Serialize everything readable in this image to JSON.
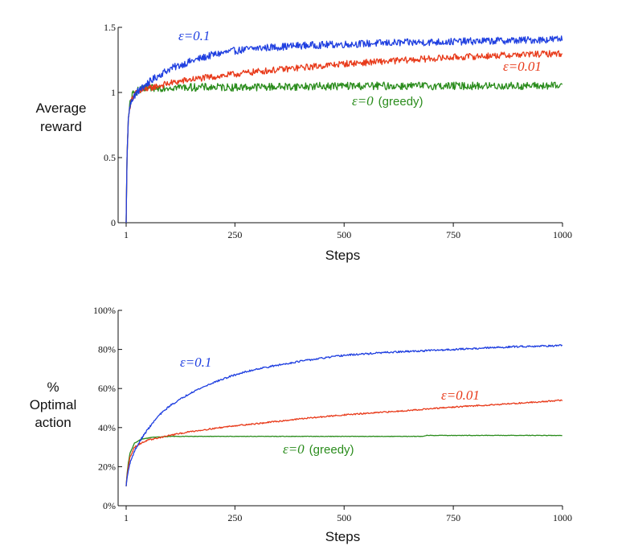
{
  "chart_data": [
    {
      "type": "line",
      "xlabel": "Steps",
      "ylabel": [
        "Average",
        "reward"
      ],
      "xlim": [
        1,
        1000
      ],
      "ylim": [
        0,
        1.5
      ],
      "xticks": [
        "1",
        "250",
        "500",
        "750",
        "1000"
      ],
      "yticks": [
        "0",
        "0.5",
        "1",
        "1.5"
      ],
      "grid": false,
      "series": [
        {
          "name": "ε=0.1",
          "color": "#1f3fe0",
          "points": [
            [
              1,
              0.0
            ],
            [
              3,
              0.5
            ],
            [
              6,
              0.8
            ],
            [
              10,
              0.9
            ],
            [
              15,
              0.95
            ],
            [
              25,
              1.0
            ],
            [
              50,
              1.07
            ],
            [
              75,
              1.13
            ],
            [
              100,
              1.18
            ],
            [
              150,
              1.24
            ],
            [
              200,
              1.29
            ],
            [
              250,
              1.32
            ],
            [
              300,
              1.34
            ],
            [
              400,
              1.36
            ],
            [
              500,
              1.37
            ],
            [
              600,
              1.38
            ],
            [
              750,
              1.39
            ],
            [
              900,
              1.4
            ],
            [
              1000,
              1.41
            ]
          ]
        },
        {
          "name": "ε=0.01",
          "color": "#e83a1a",
          "points": [
            [
              1,
              0.0
            ],
            [
              3,
              0.5
            ],
            [
              6,
              0.8
            ],
            [
              10,
              0.9
            ],
            [
              15,
              0.96
            ],
            [
              25,
              1.0
            ],
            [
              50,
              1.03
            ],
            [
              100,
              1.07
            ],
            [
              150,
              1.1
            ],
            [
              200,
              1.12
            ],
            [
              250,
              1.14
            ],
            [
              300,
              1.16
            ],
            [
              400,
              1.19
            ],
            [
              500,
              1.22
            ],
            [
              600,
              1.24
            ],
            [
              750,
              1.27
            ],
            [
              900,
              1.29
            ],
            [
              1000,
              1.3
            ]
          ]
        },
        {
          "name": "ε=0 (greedy)",
          "color": "#2a8c1c",
          "points": [
            [
              1,
              0.0
            ],
            [
              3,
              0.5
            ],
            [
              6,
              0.8
            ],
            [
              10,
              0.92
            ],
            [
              15,
              0.98
            ],
            [
              25,
              1.01
            ],
            [
              50,
              1.03
            ],
            [
              100,
              1.04
            ],
            [
              250,
              1.04
            ],
            [
              500,
              1.05
            ],
            [
              750,
              1.05
            ],
            [
              1000,
              1.05
            ]
          ]
        }
      ],
      "annotations": [
        {
          "text": "ε=0.1",
          "series": 0
        },
        {
          "text": "ε=0.01",
          "series": 1
        },
        {
          "text": "ε=0",
          "suffix": "(greedy)",
          "series": 2
        }
      ]
    },
    {
      "type": "line",
      "xlabel": "Steps",
      "ylabel": [
        "%",
        "Optimal",
        "action"
      ],
      "xlim": [
        1,
        1000
      ],
      "ylim": [
        0,
        100
      ],
      "xticks": [
        "1",
        "250",
        "500",
        "750",
        "1000"
      ],
      "yticks": [
        "0%",
        "20%",
        "40%",
        "60%",
        "80%",
        "100%"
      ],
      "grid": false,
      "series": [
        {
          "name": "ε=0.1",
          "color": "#1f3fe0",
          "points": [
            [
              1,
              10
            ],
            [
              3,
              14
            ],
            [
              6,
              18
            ],
            [
              10,
              22
            ],
            [
              20,
              28
            ],
            [
              35,
              34
            ],
            [
              50,
              39
            ],
            [
              75,
              46
            ],
            [
              100,
              51
            ],
            [
              150,
              58
            ],
            [
              200,
              63
            ],
            [
              250,
              67
            ],
            [
              300,
              70
            ],
            [
              400,
              74
            ],
            [
              500,
              77
            ],
            [
              600,
              78.5
            ],
            [
              750,
              80
            ],
            [
              900,
              81.5
            ],
            [
              1000,
              82
            ]
          ]
        },
        {
          "name": "ε=0.01",
          "color": "#e83a1a",
          "points": [
            [
              1,
              10
            ],
            [
              3,
              15
            ],
            [
              6,
              20
            ],
            [
              10,
              25
            ],
            [
              20,
              30
            ],
            [
              35,
              32
            ],
            [
              50,
              33.5
            ],
            [
              100,
              36
            ],
            [
              150,
              38
            ],
            [
              200,
              39.5
            ],
            [
              250,
              41
            ],
            [
              300,
              42
            ],
            [
              400,
              44.5
            ],
            [
              500,
              46.5
            ],
            [
              600,
              48
            ],
            [
              750,
              50.5
            ],
            [
              900,
              52.5
            ],
            [
              1000,
              54
            ]
          ]
        },
        {
          "name": "ε=0 (greedy)",
          "color": "#2a8c1c",
          "points": [
            [
              1,
              10
            ],
            [
              3,
              16
            ],
            [
              6,
              22
            ],
            [
              10,
              27
            ],
            [
              20,
              32
            ],
            [
              35,
              34
            ],
            [
              60,
              35
            ],
            [
              100,
              35.5
            ],
            [
              250,
              35.5
            ],
            [
              500,
              35.5
            ],
            [
              680,
              35.5
            ],
            [
              690,
              36
            ],
            [
              1000,
              36
            ]
          ]
        }
      ],
      "annotations": [
        {
          "text": "ε=0.1",
          "series": 0
        },
        {
          "text": "ε=0.01",
          "series": 1
        },
        {
          "text": "ε=0",
          "suffix": "(greedy)",
          "series": 2
        }
      ]
    }
  ]
}
